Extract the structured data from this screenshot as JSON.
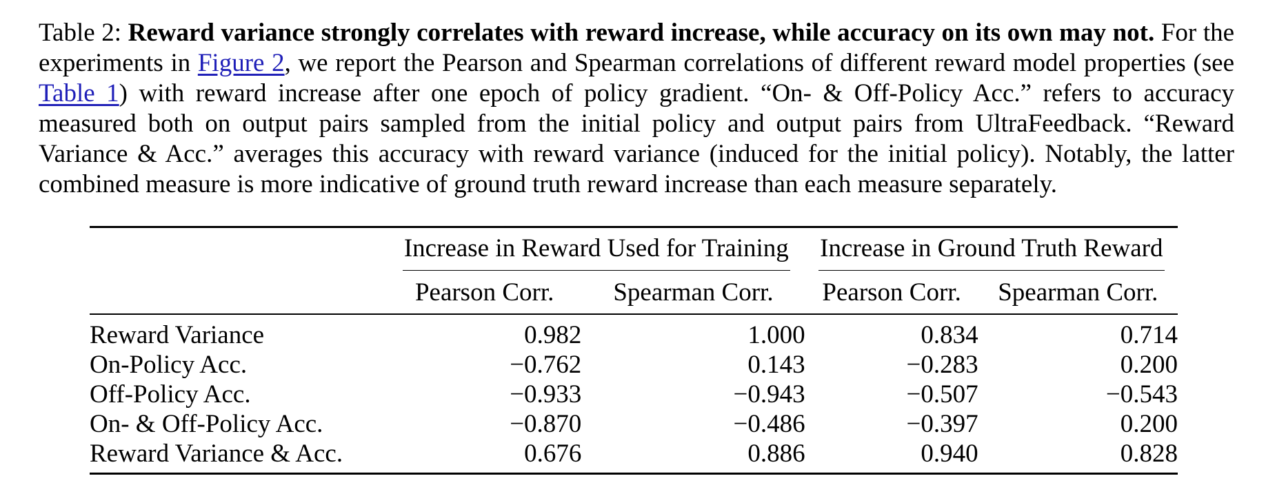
{
  "caption": {
    "label": "Table 2:",
    "title": "Reward variance strongly correlates with reward increase, while accuracy on its own may not.",
    "text_1": "For the experiments in",
    "link_figure": "Figure 2",
    "text_2": ", we report the Pearson and Spearman correlations of different reward model properties (see",
    "link_table": "Table 1",
    "text_3": ") with reward increase after one epoch of policy gradient. “On- & Off-Policy Acc.” refers to accuracy measured both on output pairs sampled from the initial policy and output pairs from UltraFeedback. “Reward Variance & Acc.” averages this accuracy with reward variance (induced for the initial policy). Notably, the latter combined measure is more indicative of ground truth reward increase than each measure separately."
  },
  "table": {
    "group_headers": [
      "Increase in Reward Used for Training",
      "Increase in Ground Truth Reward"
    ],
    "sub_headers": [
      "Pearson Corr.",
      "Spearman Corr.",
      "Pearson Corr.",
      "Spearman Corr."
    ],
    "rows": [
      {
        "label": "Reward Variance",
        "values": [
          "0.982",
          "1.000",
          "0.834",
          "0.714"
        ],
        "bold": [
          true,
          true,
          false,
          false
        ]
      },
      {
        "label": "On-Policy Acc.",
        "values": [
          "−0.762",
          "0.143",
          "−0.283",
          "0.200"
        ],
        "bold": [
          false,
          false,
          false,
          false
        ]
      },
      {
        "label": "Off-Policy Acc.",
        "values": [
          "−0.933",
          "−0.943",
          "−0.507",
          "−0.543"
        ],
        "bold": [
          false,
          false,
          false,
          false
        ]
      },
      {
        "label": "On- & Off-Policy Acc.",
        "values": [
          "−0.870",
          "−0.486",
          "−0.397",
          "0.200"
        ],
        "bold": [
          false,
          false,
          false,
          false
        ]
      },
      {
        "label": "Reward Variance & Acc.",
        "values": [
          "0.676",
          "0.886",
          "0.940",
          "0.828"
        ],
        "bold": [
          false,
          false,
          true,
          true
        ]
      }
    ]
  }
}
